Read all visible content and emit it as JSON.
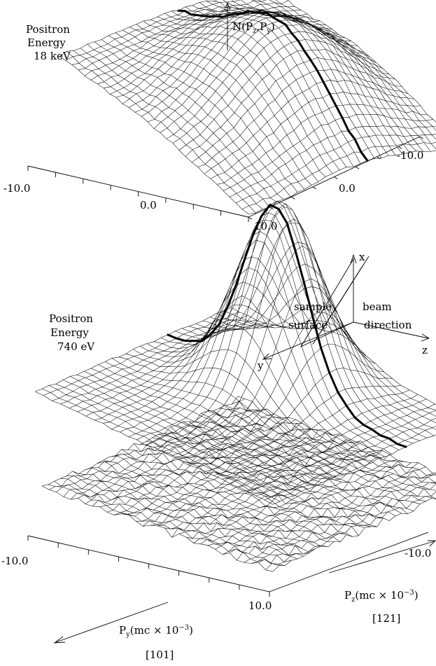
{
  "top_panel": {
    "label_lines": [
      "Positron",
      "Energy",
      "18 keV"
    ],
    "vertical_axis_label": "N(P",
    "vertical_axis_sub1": "z",
    "vertical_axis_mid": ",P",
    "vertical_axis_sub2": "y",
    "vertical_axis_end": ")",
    "py_ticks": [
      "-10.0",
      "0.0",
      "10.0"
    ],
    "pz_ticks": [
      "-10.0",
      "0.0"
    ]
  },
  "middle_panel": {
    "label_lines": [
      "Positron",
      "Energy",
      "740 eV"
    ]
  },
  "geometry_inset": {
    "axis_x": "x",
    "axis_y": "y",
    "axis_z": "z",
    "sample_label": [
      "sample",
      "surface"
    ],
    "beam_label": [
      "beam",
      "direction"
    ]
  },
  "bottom_panel": {
    "py_tick_start": "-10.0",
    "py_tick_end": "10.0",
    "pz_tick": "-10.0",
    "py_axis_label": "P",
    "py_axis_sub": "y",
    "py_axis_units": "(mc × 10",
    "py_axis_exp": "−3",
    "py_axis_close": ")",
    "py_direction": "[101]",
    "pz_axis_label": "P",
    "pz_axis_sub": "z",
    "pz_axis_units": "(mc × 10",
    "pz_axis_exp": "−3",
    "pz_axis_close": ")",
    "pz_direction": "[121]"
  }
}
